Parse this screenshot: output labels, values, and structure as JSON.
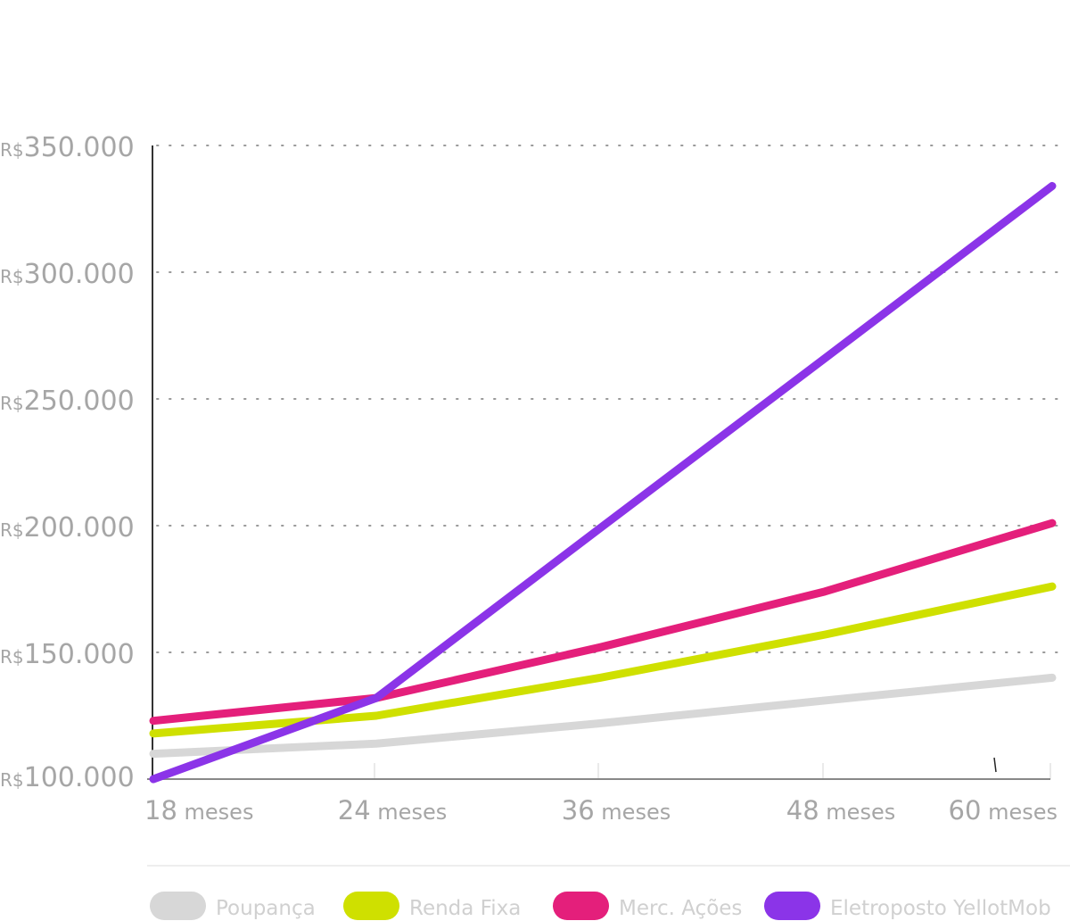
{
  "chart_data": {
    "type": "line",
    "title": "",
    "xlabel": "",
    "ylabel": "",
    "categories": [
      "18",
      "24",
      "36",
      "48",
      "60"
    ],
    "category_unit": "meses",
    "y_prefix": "R$",
    "ylim": [
      100000,
      350000
    ],
    "y_ticks": [
      100000,
      150000,
      200000,
      250000,
      300000,
      350000
    ],
    "y_tick_labels": [
      "100.000",
      "150.000",
      "200.000",
      "250.000",
      "300.000",
      "350.000"
    ],
    "grid": "horizontal dotted",
    "legend_position": "bottom",
    "series": [
      {
        "name": "Poupança",
        "color": "#d7d7d7",
        "values": [
          110000,
          114000,
          122000,
          131000,
          140000
        ]
      },
      {
        "name": "Renda Fixa",
        "color": "#cfe000",
        "values": [
          118000,
          125000,
          140000,
          157000,
          176000
        ]
      },
      {
        "name": "Merc. Ações",
        "color": "#e41f7b",
        "values": [
          123000,
          132000,
          152000,
          174000,
          201000
        ]
      },
      {
        "name": "Eletroposto YellotMob",
        "color": "#8b34e8",
        "values": [
          100000,
          132000,
          199000,
          266000,
          334000
        ]
      }
    ]
  }
}
